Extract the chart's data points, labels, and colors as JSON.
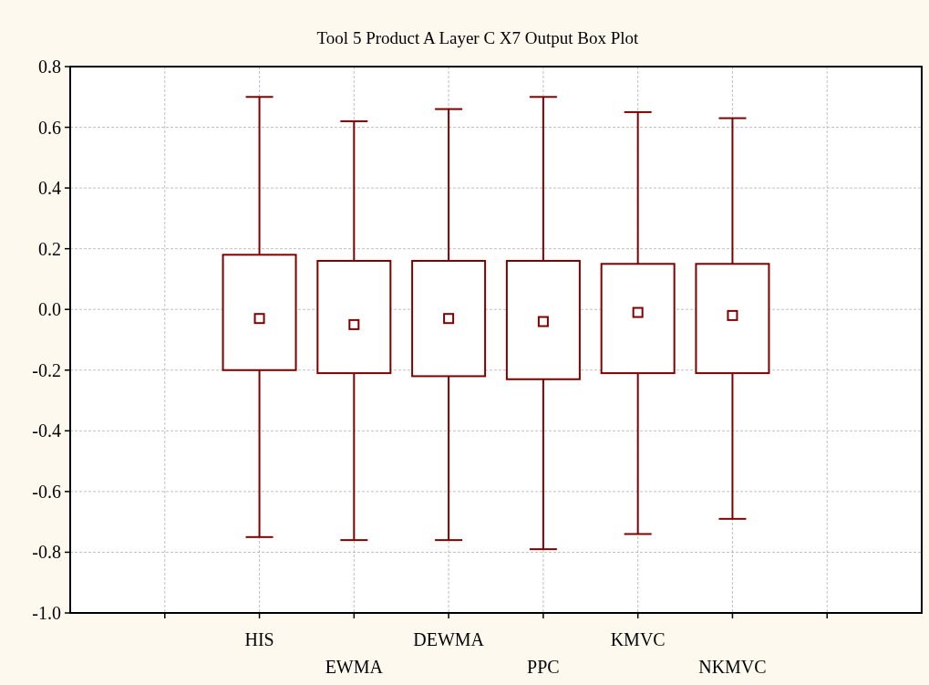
{
  "chart_data": {
    "type": "box",
    "title": "Tool 5 Product A Layer C X7 Output Box Plot",
    "categories": [
      null,
      "HIS",
      "EWMA",
      "DEWMA",
      "PPC",
      "KMVC",
      "NKMVC",
      null
    ],
    "boxes": [
      null,
      {
        "low": -0.75,
        "q1": -0.2,
        "median": -0.03,
        "q3": 0.18,
        "high": 0.7
      },
      {
        "low": -0.76,
        "q1": -0.21,
        "median": -0.05,
        "q3": 0.16,
        "high": 0.62
      },
      {
        "low": -0.76,
        "q1": -0.22,
        "median": -0.03,
        "q3": 0.16,
        "high": 0.66
      },
      {
        "low": -0.79,
        "q1": -0.23,
        "median": -0.04,
        "q3": 0.16,
        "high": 0.7
      },
      {
        "low": -0.74,
        "q1": -0.21,
        "median": -0.01,
        "q3": 0.15,
        "high": 0.65
      },
      {
        "low": -0.69,
        "q1": -0.21,
        "median": -0.02,
        "q3": 0.15,
        "high": 0.63
      },
      null
    ],
    "color": "#800000",
    "marker": "square",
    "ylim": [
      -1.0,
      0.8
    ],
    "yticks": [
      {
        "value": -1,
        "label": "-1.0"
      },
      {
        "value": -0.8,
        "label": "-0.8"
      },
      {
        "value": -0.6,
        "label": "-0.6"
      },
      {
        "value": -0.4,
        "label": "-0.4"
      },
      {
        "value": -0.2,
        "label": "-0.2"
      },
      {
        "value": 0,
        "label": "0.0"
      },
      {
        "value": 0.2,
        "label": "0.2"
      },
      {
        "value": 0.4,
        "label": "0.4"
      },
      {
        "value": 0.6,
        "label": "0.6"
      },
      {
        "value": 0.8,
        "label": "0.8"
      }
    ],
    "grid": true
  }
}
